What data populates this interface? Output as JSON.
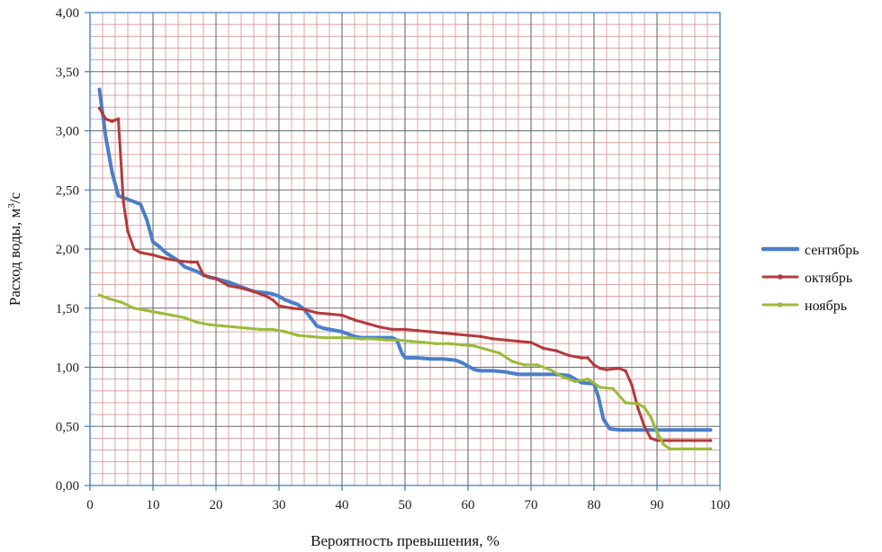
{
  "chart_data": {
    "type": "line",
    "xlabel": "Вероятность превышения, %",
    "ylabel": "Расход воды, м³/с",
    "ylabel_main": "Расход воды, м",
    "ylabel_sup": "3",
    "ylabel_tail": "/с",
    "xlim": [
      0,
      100
    ],
    "ylim": [
      0,
      4
    ],
    "x_ticks": [
      "0",
      "10",
      "20",
      "30",
      "40",
      "50",
      "60",
      "70",
      "80",
      "90",
      "100"
    ],
    "y_ticks": [
      "0,00",
      "0,50",
      "1,00",
      "1,50",
      "2,00",
      "2,50",
      "3,00",
      "3,50",
      "4,00"
    ],
    "grid": true,
    "legend_position": "right",
    "series": [
      {
        "name": "сентябрь",
        "color": "#4a7fc9",
        "marker": "none",
        "x": [
          1.5,
          2.5,
          3.5,
          4.5,
          6,
          8,
          9,
          10,
          11,
          12,
          14,
          15,
          16,
          17,
          18,
          19,
          20,
          22,
          24,
          26,
          28,
          29,
          30,
          31,
          32,
          33,
          34,
          35,
          36,
          37,
          38,
          40,
          42,
          43,
          44,
          46,
          48,
          48.7,
          49.5,
          50,
          52,
          54,
          56,
          58,
          59,
          60,
          61,
          62,
          64,
          66,
          68,
          70,
          72,
          74,
          76,
          78,
          80,
          80.7,
          81.5,
          82.5,
          84,
          86,
          88,
          90,
          92,
          94,
          96,
          98.5
        ],
        "y": [
          3.35,
          2.95,
          2.65,
          2.45,
          2.42,
          2.38,
          2.25,
          2.06,
          2.02,
          1.97,
          1.9,
          1.85,
          1.83,
          1.81,
          1.78,
          1.76,
          1.75,
          1.72,
          1.68,
          1.64,
          1.63,
          1.62,
          1.6,
          1.57,
          1.55,
          1.53,
          1.49,
          1.42,
          1.35,
          1.33,
          1.32,
          1.3,
          1.26,
          1.25,
          1.25,
          1.25,
          1.25,
          1.23,
          1.12,
          1.08,
          1.08,
          1.07,
          1.07,
          1.06,
          1.04,
          1.01,
          0.98,
          0.97,
          0.97,
          0.96,
          0.94,
          0.94,
          0.94,
          0.94,
          0.93,
          0.87,
          0.86,
          0.75,
          0.56,
          0.48,
          0.47,
          0.47,
          0.47,
          0.47,
          0.47,
          0.47,
          0.47,
          0.47
        ]
      },
      {
        "name": "октябрь",
        "color": "#b43a3c",
        "marker": "small-dot",
        "x": [
          1.5,
          2.5,
          3.5,
          4.5,
          5.3,
          6,
          7,
          8,
          10,
          12,
          14,
          16,
          17,
          18,
          20,
          22,
          24,
          26,
          28,
          29,
          30,
          32,
          34,
          36,
          38,
          40,
          42,
          44,
          46,
          48,
          50,
          52,
          54,
          56,
          58,
          60,
          62,
          64,
          66,
          68,
          70,
          72,
          74,
          76,
          78,
          79,
          80,
          81,
          82,
          84,
          85,
          86,
          87,
          88,
          89,
          90,
          92,
          94,
          96,
          98.5
        ],
        "y": [
          3.19,
          3.1,
          3.08,
          3.1,
          2.4,
          2.15,
          2.0,
          1.97,
          1.95,
          1.92,
          1.9,
          1.89,
          1.89,
          1.78,
          1.75,
          1.69,
          1.67,
          1.64,
          1.6,
          1.57,
          1.52,
          1.5,
          1.49,
          1.46,
          1.45,
          1.44,
          1.4,
          1.37,
          1.34,
          1.32,
          1.32,
          1.31,
          1.3,
          1.29,
          1.28,
          1.27,
          1.26,
          1.24,
          1.23,
          1.22,
          1.21,
          1.16,
          1.14,
          1.1,
          1.08,
          1.08,
          1.02,
          0.99,
          0.98,
          0.99,
          0.97,
          0.85,
          0.65,
          0.5,
          0.4,
          0.38,
          0.38,
          0.38,
          0.38,
          0.38
        ]
      },
      {
        "name": "ноябрь",
        "color": "#9bbb3a",
        "marker": "small-dot",
        "x": [
          1.5,
          3,
          5,
          7,
          9,
          11,
          13,
          15,
          17,
          19,
          21,
          23,
          25,
          27,
          29,
          31,
          33,
          35,
          37,
          39,
          41,
          43,
          45,
          47,
          49,
          51,
          53,
          55,
          57,
          59,
          61,
          63,
          65,
          67,
          69,
          71,
          73,
          75,
          77,
          79,
          81,
          83,
          85,
          87,
          88,
          89,
          90,
          91,
          92,
          94,
          96,
          98.5
        ],
        "y": [
          1.61,
          1.58,
          1.55,
          1.5,
          1.48,
          1.46,
          1.44,
          1.42,
          1.38,
          1.36,
          1.35,
          1.34,
          1.33,
          1.32,
          1.32,
          1.3,
          1.27,
          1.26,
          1.25,
          1.25,
          1.25,
          1.24,
          1.24,
          1.23,
          1.23,
          1.22,
          1.21,
          1.2,
          1.2,
          1.19,
          1.18,
          1.15,
          1.12,
          1.05,
          1.02,
          1.02,
          0.98,
          0.92,
          0.88,
          0.9,
          0.83,
          0.82,
          0.7,
          0.69,
          0.66,
          0.58,
          0.45,
          0.35,
          0.31,
          0.31,
          0.31,
          0.31
        ]
      }
    ]
  }
}
